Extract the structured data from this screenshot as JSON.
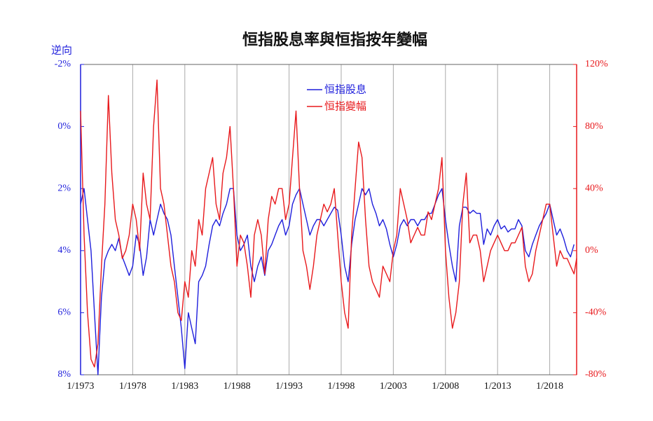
{
  "chart_data": {
    "type": "line",
    "title": "恒指股息率與恒指按年變幅",
    "y_axis_label": "逆向",
    "x": [
      "1/1973",
      "5/1973",
      "9/1973",
      "1/1974",
      "5/1974",
      "9/1974",
      "1/1975",
      "5/1975",
      "9/1975",
      "1/1976",
      "5/1976",
      "9/1976",
      "1/1977",
      "5/1977",
      "9/1977",
      "1/1978",
      "5/1978",
      "9/1978",
      "1/1979",
      "5/1979",
      "9/1979",
      "1/1980",
      "5/1980",
      "9/1980",
      "1/1981",
      "5/1981",
      "9/1981",
      "1/1982",
      "5/1982",
      "9/1982",
      "1/1983",
      "5/1983",
      "9/1983",
      "1/1984",
      "5/1984",
      "9/1984",
      "1/1985",
      "5/1985",
      "9/1985",
      "1/1986",
      "5/1986",
      "9/1986",
      "1/1987",
      "5/1987",
      "9/1987",
      "1/1988",
      "5/1988",
      "9/1988",
      "1/1989",
      "5/1989",
      "9/1989",
      "1/1990",
      "5/1990",
      "9/1990",
      "1/1991",
      "5/1991",
      "9/1991",
      "1/1992",
      "5/1992",
      "9/1992",
      "1/1993",
      "5/1993",
      "9/1993",
      "1/1994",
      "5/1994",
      "9/1994",
      "1/1995",
      "5/1995",
      "9/1995",
      "1/1996",
      "5/1996",
      "9/1996",
      "1/1997",
      "5/1997",
      "9/1997",
      "1/1998",
      "5/1998",
      "9/1998",
      "1/1999",
      "5/1999",
      "9/1999",
      "1/2000",
      "5/2000",
      "9/2000",
      "1/2001",
      "5/2001",
      "9/2001",
      "1/2002",
      "5/2002",
      "9/2002",
      "1/2003",
      "5/2003",
      "9/2003",
      "1/2004",
      "5/2004",
      "9/2004",
      "1/2005",
      "5/2005",
      "9/2005",
      "1/2006",
      "5/2006",
      "9/2006",
      "1/2007",
      "5/2007",
      "9/2007",
      "1/2008",
      "5/2008",
      "9/2008",
      "1/2009",
      "5/2009",
      "9/2009",
      "1/2010",
      "5/2010",
      "9/2010",
      "1/2011",
      "5/2011",
      "9/2011",
      "1/2012",
      "5/2012",
      "9/2012",
      "1/2013",
      "5/2013",
      "9/2013",
      "1/2014",
      "5/2014",
      "9/2014",
      "1/2015",
      "5/2015",
      "9/2015",
      "1/2016",
      "5/2016",
      "9/2016",
      "1/2017",
      "5/2017",
      "9/2017",
      "1/2018",
      "5/2018",
      "9/2018",
      "1/2019",
      "5/2019",
      "9/2019",
      "1/2020",
      "5/2020",
      "8/2020"
    ],
    "series": [
      {
        "name": "恒指股息",
        "color": "#1f1fdc",
        "axis": "y",
        "values": [
          2.5,
          2.0,
          3.0,
          4.0,
          6.0,
          8.0,
          5.5,
          4.3,
          4.0,
          3.8,
          4.0,
          3.6,
          4.2,
          4.5,
          4.8,
          4.5,
          3.5,
          3.8,
          4.8,
          4.2,
          3.0,
          3.5,
          3.0,
          2.5,
          2.8,
          3.0,
          3.5,
          4.5,
          5.5,
          6.5,
          7.8,
          6.0,
          6.5,
          7.0,
          5.0,
          4.8,
          4.5,
          3.8,
          3.2,
          3.0,
          3.2,
          2.8,
          2.5,
          2.0,
          2.0,
          3.5,
          4.0,
          3.8,
          3.5,
          4.5,
          5.0,
          4.5,
          4.2,
          4.8,
          4.0,
          3.8,
          3.5,
          3.2,
          3.0,
          3.5,
          3.2,
          2.5,
          2.2,
          2.0,
          2.5,
          3.0,
          3.5,
          3.2,
          3.0,
          3.0,
          3.2,
          3.0,
          2.8,
          2.6,
          2.7,
          3.5,
          4.5,
          5.0,
          3.8,
          3.0,
          2.5,
          2.0,
          2.2,
          2.0,
          2.5,
          2.8,
          3.2,
          3.0,
          3.3,
          3.8,
          4.2,
          3.8,
          3.2,
          3.0,
          3.2,
          3.0,
          3.0,
          3.2,
          3.0,
          3.0,
          2.8,
          2.8,
          2.5,
          2.2,
          2.0,
          3.0,
          3.8,
          4.5,
          5.0,
          3.2,
          2.6,
          2.6,
          2.8,
          2.7,
          2.8,
          2.8,
          3.8,
          3.3,
          3.5,
          3.2,
          3.0,
          3.3,
          3.2,
          3.4,
          3.3,
          3.3,
          3.0,
          3.2,
          4.0,
          4.2,
          3.8,
          3.5,
          3.2,
          3.0,
          2.8,
          2.5,
          3.0,
          3.5,
          3.3,
          3.6,
          4.0,
          4.2,
          3.8,
          null
        ]
      },
      {
        "name": "恒指變幅",
        "color": "#e8191c",
        "axis": "y2",
        "values": [
          90,
          10,
          -40,
          -70,
          -75,
          -60,
          -10,
          30,
          100,
          50,
          20,
          10,
          -5,
          0,
          10,
          30,
          20,
          0,
          50,
          30,
          20,
          80,
          110,
          40,
          30,
          10,
          -10,
          -20,
          -40,
          -45,
          -20,
          -30,
          0,
          -10,
          20,
          10,
          40,
          50,
          60,
          30,
          20,
          50,
          60,
          80,
          40,
          -10,
          10,
          5,
          -10,
          -30,
          10,
          20,
          10,
          -15,
          20,
          35,
          30,
          40,
          40,
          20,
          30,
          60,
          90,
          40,
          0,
          -10,
          -25,
          -10,
          10,
          20,
          30,
          25,
          30,
          40,
          10,
          -20,
          -40,
          -50,
          10,
          40,
          70,
          60,
          20,
          -10,
          -20,
          -25,
          -30,
          -10,
          -15,
          -20,
          0,
          10,
          40,
          30,
          20,
          5,
          10,
          15,
          10,
          10,
          25,
          20,
          30,
          40,
          60,
          0,
          -30,
          -50,
          -40,
          -20,
          30,
          50,
          5,
          10,
          10,
          0,
          -20,
          -10,
          0,
          5,
          10,
          5,
          0,
          0,
          5,
          5,
          10,
          15,
          -10,
          -20,
          -15,
          0,
          10,
          20,
          30,
          30,
          10,
          -10,
          0,
          -5,
          -5,
          -10,
          -15,
          -5
        ]
      }
    ],
    "xlim": [
      "1/1973",
      "8/2020"
    ],
    "xticks": [
      "1/1973",
      "1/1978",
      "1/1983",
      "1/1988",
      "1/1993",
      "1/1998",
      "1/2003",
      "1/2008",
      "1/2013",
      "1/2018"
    ],
    "ylim": [
      -2,
      8
    ],
    "y_inverted": true,
    "yticks": [
      {
        "value": -2,
        "label": "-2%"
      },
      {
        "value": 0,
        "label": "0%"
      },
      {
        "value": 2,
        "label": "2%"
      },
      {
        "value": 4,
        "label": "4%"
      },
      {
        "value": 6,
        "label": "6%"
      },
      {
        "value": 8,
        "label": "8%"
      }
    ],
    "y2lim": [
      -80,
      120
    ],
    "y2ticks": [
      {
        "value": -80,
        "label": "-80%"
      },
      {
        "value": -40,
        "label": "-40%"
      },
      {
        "value": 0,
        "label": "0%"
      },
      {
        "value": 40,
        "label": "40%"
      },
      {
        "value": 80,
        "label": "80%"
      },
      {
        "value": 120,
        "label": "120%"
      }
    ],
    "grid": "x",
    "legend": "top"
  }
}
